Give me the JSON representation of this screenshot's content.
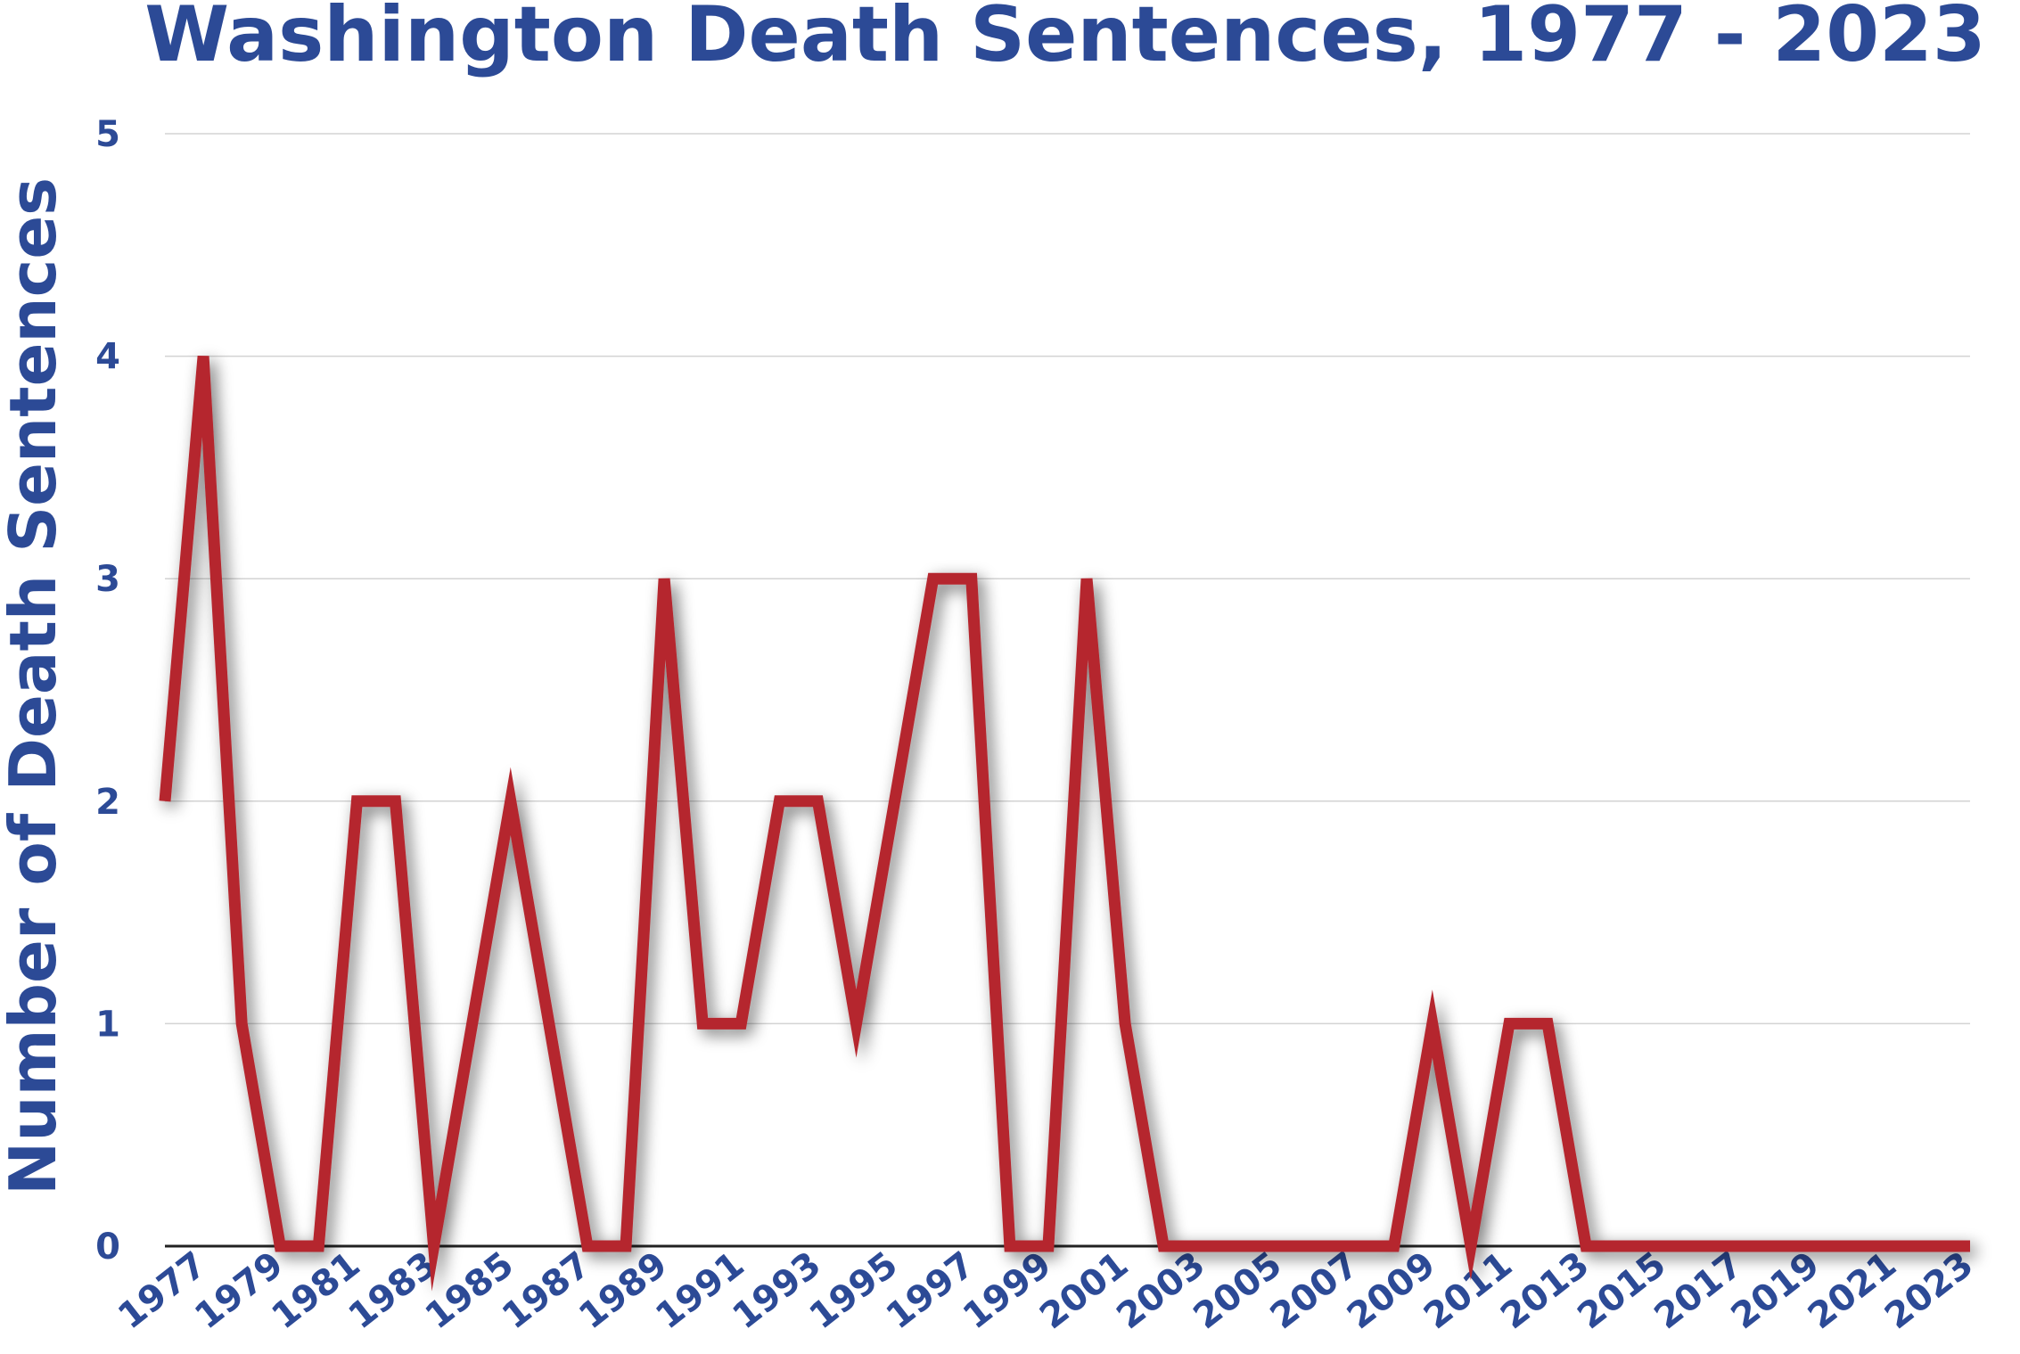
{
  "chart_data": {
    "type": "line",
    "title": "Washington Death Sentences, 1977 - 2023",
    "ylabel": "Number of Death Sentences",
    "xlabel": "",
    "ylim": [
      0,
      5
    ],
    "yticks": [
      "0",
      "1",
      "2",
      "3",
      "4",
      "5"
    ],
    "xticks": [
      "1977",
      "1979",
      "1981",
      "1983",
      "1985",
      "1987",
      "1989",
      "1991",
      "1993",
      "1995",
      "1997",
      "1999",
      "2001",
      "2003",
      "2005",
      "2007",
      "2009",
      "2011",
      "2013",
      "2015",
      "2017",
      "2019",
      "2021",
      "2023"
    ],
    "grid": true,
    "legend": "none",
    "line_color": "#b5272e",
    "text_color": "#2c4a96",
    "series": [
      {
        "x": [
          1976,
          1977,
          1978,
          1979,
          1980,
          1981,
          1982,
          1983,
          1984,
          1985,
          1986,
          1987,
          1988,
          1989,
          1990,
          1991,
          1992,
          1993,
          1994,
          1995,
          1996,
          1997,
          1998,
          1999,
          2000,
          2001,
          2002,
          2003,
          2004,
          2005,
          2006,
          2007,
          2008,
          2009,
          2010,
          2011,
          2012,
          2013,
          2014,
          2015,
          2016,
          2017,
          2018,
          2019,
          2020,
          2021,
          2022,
          2023
        ],
        "values": [
          2,
          4,
          1,
          0,
          0,
          2,
          2,
          0,
          1,
          2,
          1,
          0,
          0,
          3,
          1,
          1,
          2,
          2,
          1,
          2,
          3,
          3,
          0,
          0,
          3,
          1,
          0,
          0,
          0,
          0,
          0,
          0,
          0,
          1,
          0,
          1,
          1,
          0,
          0,
          0,
          0,
          0,
          0,
          0,
          0,
          0,
          0,
          0
        ]
      }
    ]
  }
}
